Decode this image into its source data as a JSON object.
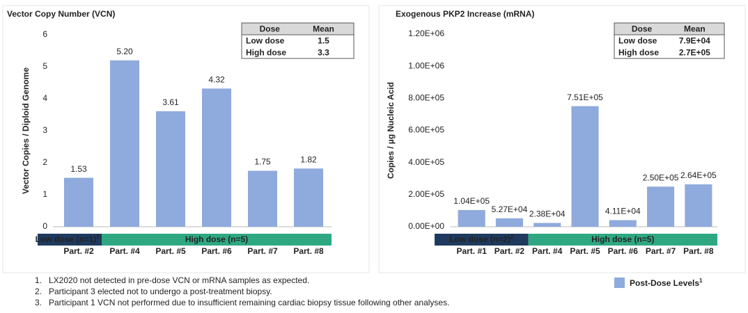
{
  "chart_data": [
    {
      "type": "bar",
      "title": "Vector Copy Number (VCN)",
      "y_label": "Vector Copies / Diploid Genome",
      "categories": [
        "Part. #2",
        "Part. #4",
        "Part. #5",
        "Part. #6",
        "Part. #7",
        "Part. #8"
      ],
      "values": [
        1.53,
        5.2,
        3.61,
        4.32,
        1.75,
        1.82
      ],
      "value_labels": [
        "1.53",
        "5.20",
        "3.61",
        "4.32",
        "1.75",
        "1.82"
      ],
      "color": "#8faadc",
      "ylim": [
        0,
        6
      ],
      "yticks": [
        0,
        1,
        2,
        3,
        4,
        5,
        6
      ],
      "groups": [
        {
          "label": "Low dose (n=1)",
          "note": "2,3",
          "count": 1,
          "color": "#1f3a5f"
        },
        {
          "label": "High dose (n=5)",
          "note": "",
          "count": 5,
          "color": "#2fa882"
        }
      ],
      "table": {
        "header": [
          "Dose",
          "Mean"
        ],
        "rows": [
          [
            "Low dose",
            "1.5"
          ],
          [
            "High dose",
            "3.3"
          ]
        ],
        "row_colors": [
          "#111111",
          "#2fa882"
        ]
      }
    },
    {
      "type": "bar",
      "title": "Exogenous PKP2 Increase (mRNA)",
      "y_label": "Copies / µg Nucleic Acid",
      "categories": [
        "Part. #1",
        "Part. #2",
        "Part. #4",
        "Part. #5",
        "Part. #6",
        "Part. #7",
        "Part. #8"
      ],
      "values": [
        104000,
        52700,
        23800,
        751000,
        41100,
        250000,
        264000
      ],
      "value_labels": [
        "1.04E+05",
        "5.27E+04",
        "2.38E+04",
        "7.51E+05",
        "4.11E+04",
        "2.50E+05",
        "2.64E+05"
      ],
      "color": "#8faadc",
      "ylim": [
        0,
        1200000
      ],
      "yticks": [
        {
          "value": 0,
          "label": "0.00E+00"
        },
        {
          "value": 200000,
          "label": "2.00E+05"
        },
        {
          "value": 400000,
          "label": "4.00E+05"
        },
        {
          "value": 600000,
          "label": "6.00E+05"
        },
        {
          "value": 800000,
          "label": "8.00E+05"
        },
        {
          "value": 1000000,
          "label": "1.00E+06"
        },
        {
          "value": 1200000,
          "label": "1.20E+06"
        }
      ],
      "groups": [
        {
          "label": "Low dose (n=2)",
          "note": "2",
          "count": 2,
          "color": "#1f3a5f"
        },
        {
          "label": "High dose (n=5)",
          "note": "",
          "count": 5,
          "color": "#2fa882"
        }
      ],
      "table": {
        "header": [
          "Dose",
          "Mean"
        ],
        "rows": [
          [
            "Low dose",
            "7.9E+04"
          ],
          [
            "High dose",
            "2.7E+05"
          ]
        ],
        "row_colors": [
          "#111111",
          "#2fa882"
        ]
      }
    }
  ],
  "legend": {
    "label": "Post-Dose Levels",
    "note": "1",
    "color": "#8faadc"
  },
  "footnotes": [
    {
      "marker": "1.",
      "text": "LX2020 not detected in pre-dose VCN or mRNA samples as expected."
    },
    {
      "marker": "2.",
      "text": "Participant 3 elected not to undergo a post-treatment biopsy."
    },
    {
      "marker": "3.",
      "text": "Participant 1 VCN not performed due to insufficient remaining cardiac biopsy tissue following other analyses."
    }
  ]
}
